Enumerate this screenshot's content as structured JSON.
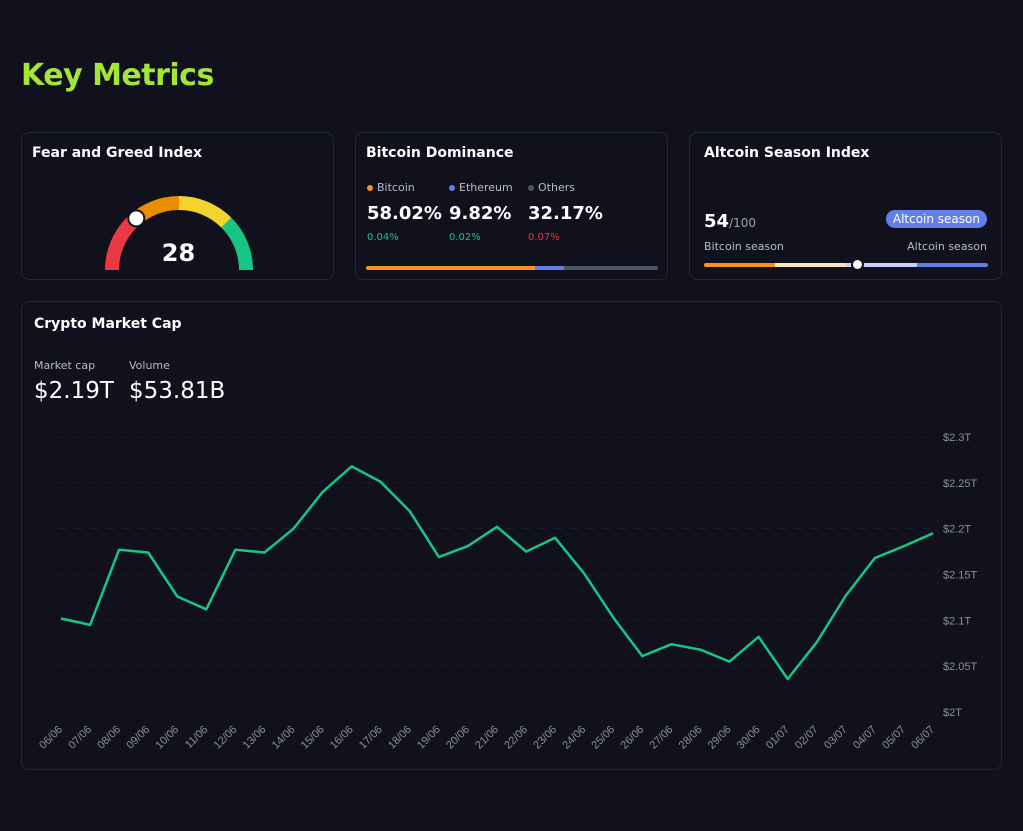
{
  "page": {
    "title": "Key Metrics"
  },
  "fear_greed": {
    "title": "Fear and Greed Index",
    "value": "28",
    "score": 28,
    "colors": [
      "#ea3943",
      "#ea8c00",
      "#f3d42f",
      "#16c784"
    ]
  },
  "dominance": {
    "title": "Bitcoin Dominance",
    "items": [
      {
        "label": "Bitcoin",
        "pct": "58.02%",
        "change": "0.04%",
        "dir": "up",
        "color": "#f7931a",
        "share": 58.02
      },
      {
        "label": "Ethereum",
        "pct": "9.82%",
        "change": "0.02%",
        "dir": "up",
        "color": "#627eea",
        "share": 9.82
      },
      {
        "label": "Others",
        "pct": "32.17%",
        "change": "0.07%",
        "dir": "down",
        "color": "#4b5563",
        "share": 32.17
      }
    ],
    "up_color": "#16c784",
    "down_color": "#ea3943"
  },
  "altcoin": {
    "title": "Altcoin Season Index",
    "score": "54",
    "max": "/100",
    "score_value": 54,
    "badge": "Altcoin season",
    "left_label": "Bitcoin season",
    "right_label": "Altcoin season"
  },
  "market_cap": {
    "title": "Crypto Market Cap",
    "cap_label": "Market cap",
    "cap_value": "$2.19T",
    "volume_label": "Volume",
    "volume_value": "$53.81B"
  },
  "chart_data": {
    "type": "line",
    "title": "Crypto Market Cap",
    "x": [
      "06/06",
      "07/06",
      "08/06",
      "09/06",
      "10/06",
      "11/06",
      "12/06",
      "13/06",
      "14/06",
      "15/06",
      "16/06",
      "17/06",
      "18/06",
      "19/06",
      "20/06",
      "21/06",
      "22/06",
      "23/06",
      "24/06",
      "25/06",
      "26/06",
      "27/06",
      "28/06",
      "29/06",
      "30/06",
      "01/07",
      "02/07",
      "03/07",
      "04/07",
      "05/07",
      "06/07"
    ],
    "series": [
      {
        "values": [
          2.102,
          2.095,
          2.177,
          2.174,
          2.126,
          2.112,
          2.177,
          2.174,
          2.2,
          2.24,
          2.268,
          2.251,
          2.219,
          2.169,
          2.181,
          2.202,
          2.175,
          2.19,
          2.151,
          2.103,
          2.061,
          2.074,
          2.068,
          2.055,
          2.082,
          2.036,
          2.076,
          2.127,
          2.168,
          2.181,
          2.195
        ],
        "color": "#16c784"
      }
    ],
    "y_ticks": [
      "$2T",
      "$2.05T",
      "$2.1T",
      "$2.15T",
      "$2.2T",
      "$2.25T",
      "$2.3T"
    ],
    "y_tick_values": [
      2.0,
      2.05,
      2.1,
      2.15,
      2.2,
      2.25,
      2.3
    ],
    "ylim": [
      2.0,
      2.3
    ],
    "grid": true,
    "axis_position": "right"
  }
}
